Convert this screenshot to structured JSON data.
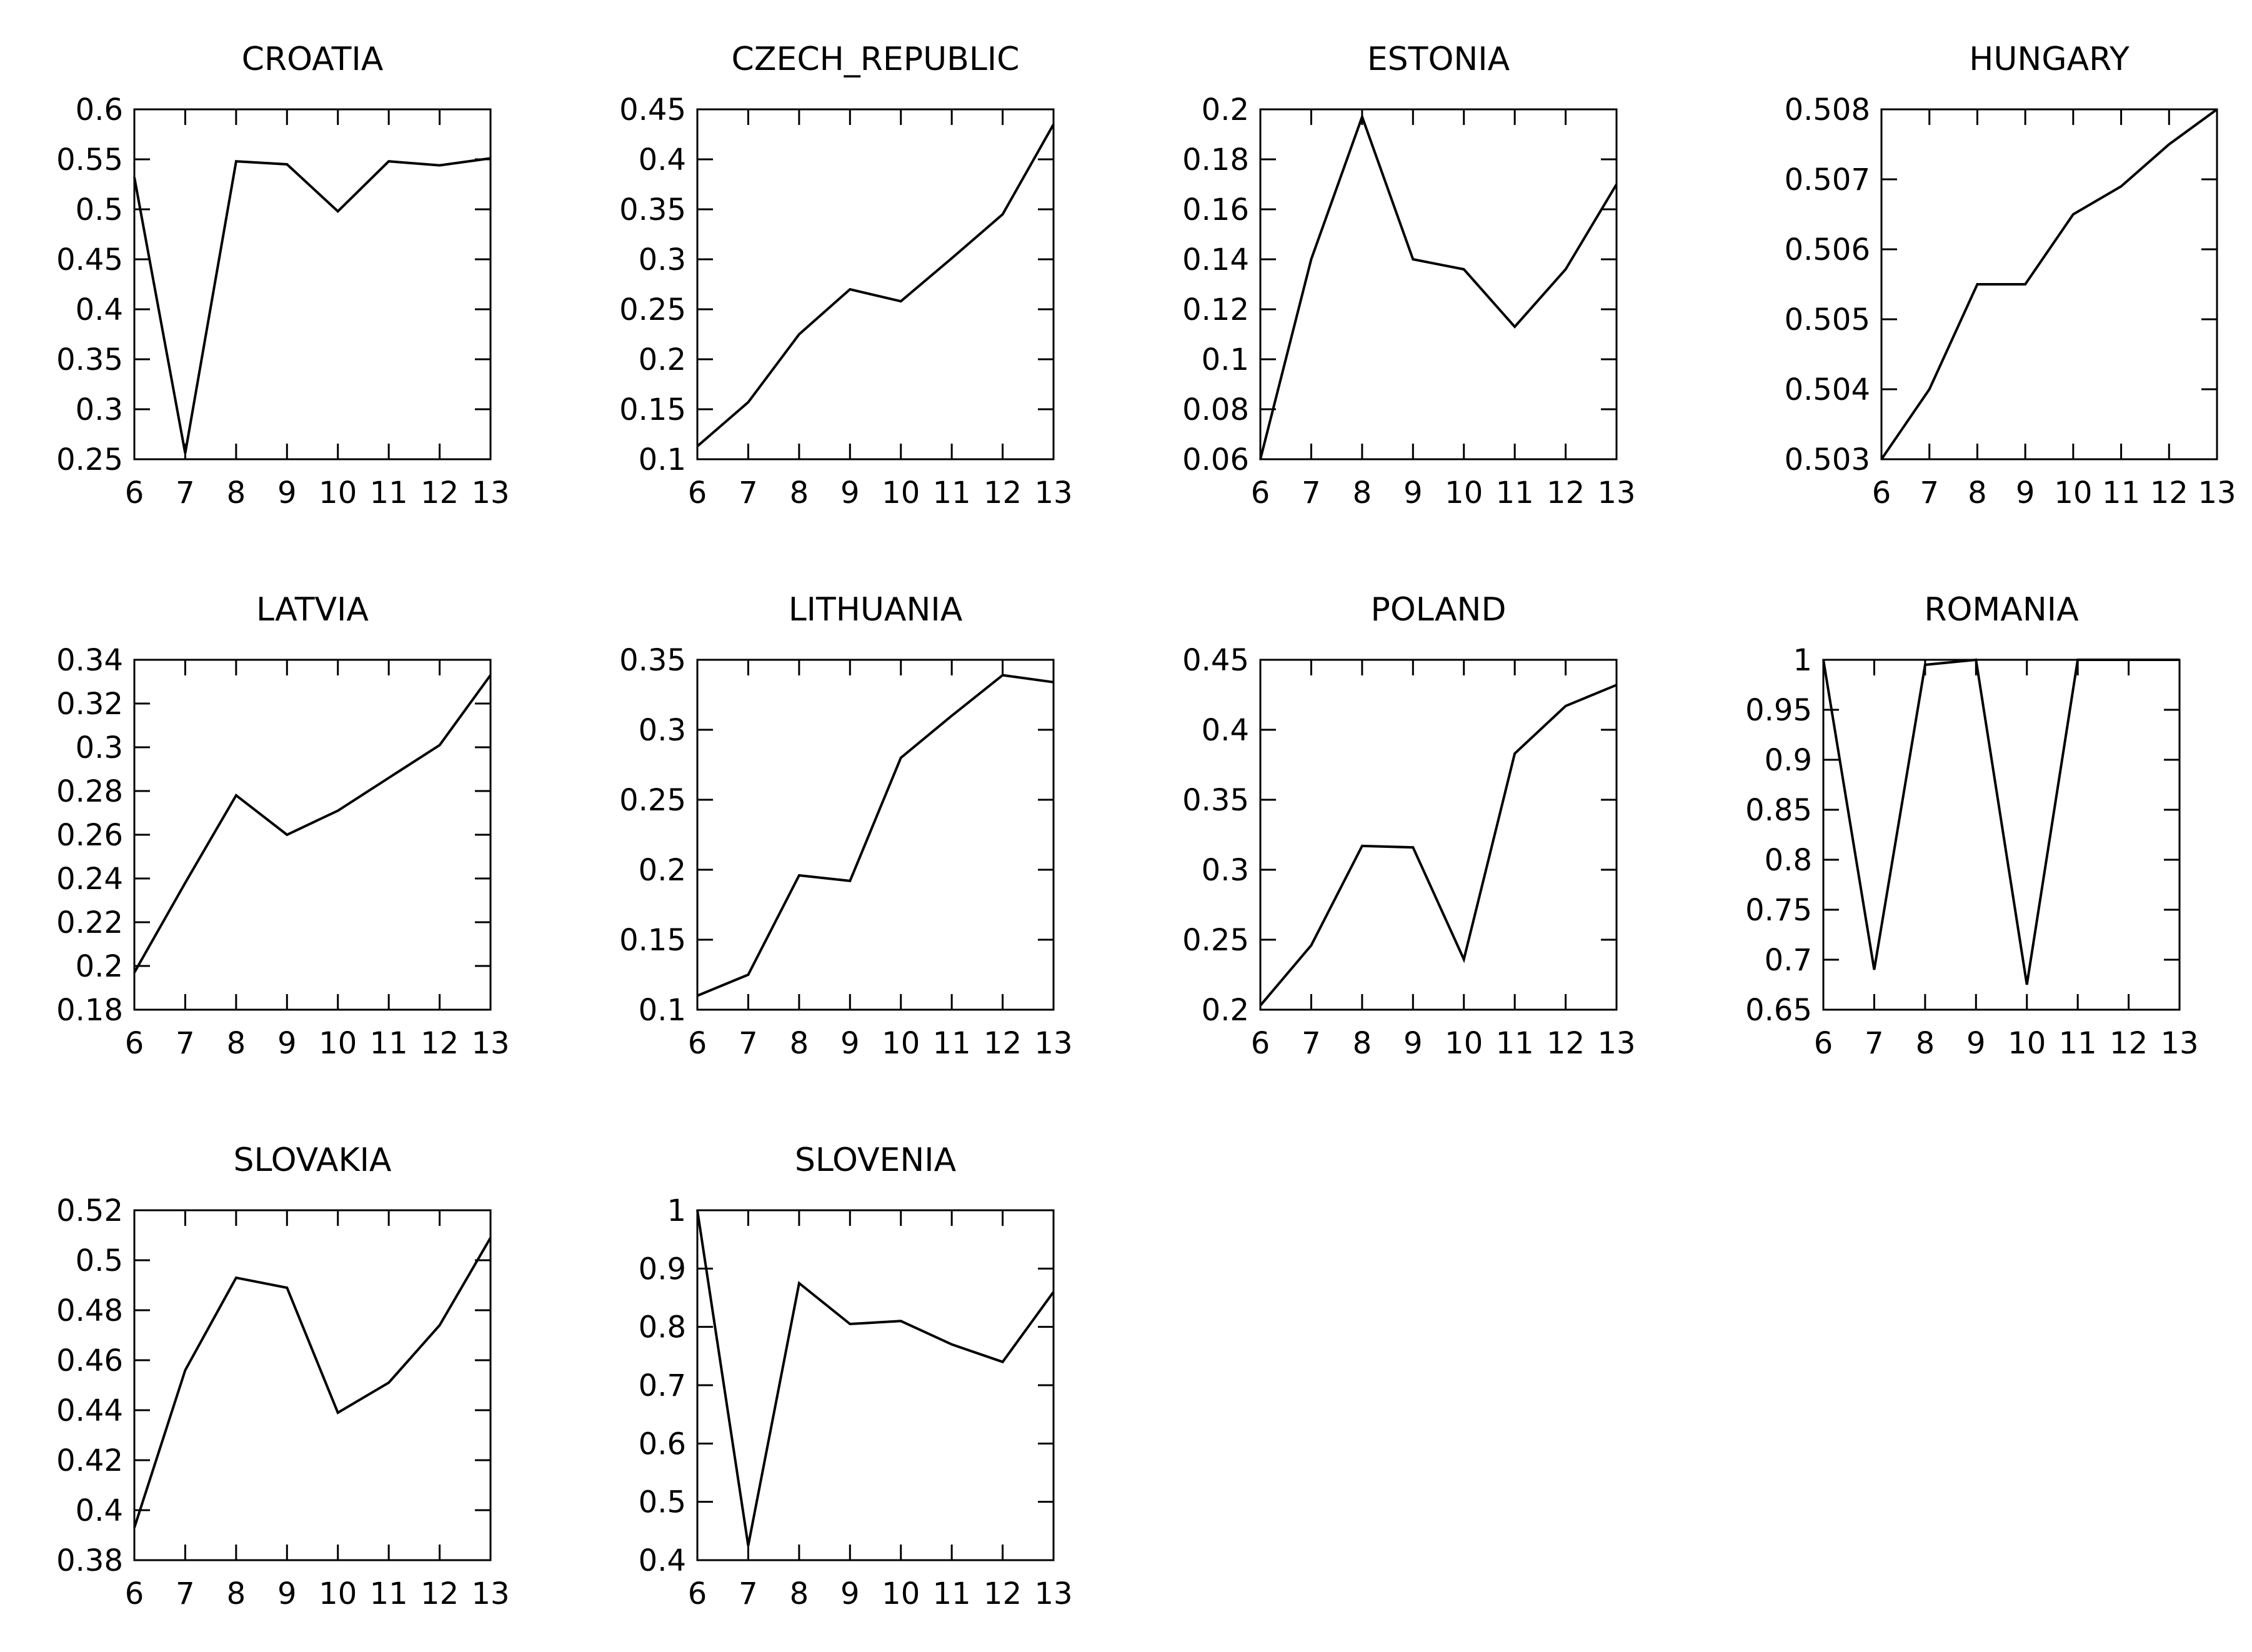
{
  "figure": {
    "background_color": "#ffffff",
    "line_color": "#000000",
    "frame_color": "#000000",
    "grid": false,
    "legend": "none",
    "columns": 4,
    "rows": 3
  },
  "chart_data": [
    {
      "type": "line",
      "title": "CROATIA",
      "x": [
        6,
        7,
        8,
        9,
        10,
        11,
        12,
        13
      ],
      "values": [
        0.532,
        0.256,
        0.548,
        0.545,
        0.498,
        0.548,
        0.544,
        0.551
      ],
      "xlabel": "",
      "ylabel": "",
      "xlim": [
        6,
        13
      ],
      "ylim": [
        0.25,
        0.6
      ],
      "xticks": [
        6,
        7,
        8,
        9,
        10,
        11,
        12,
        13
      ],
      "yticks": [
        0.25,
        0.3,
        0.35,
        0.4,
        0.45,
        0.5,
        0.55,
        0.6
      ]
    },
    {
      "type": "line",
      "title": "CZECH_REPUBLIC",
      "x": [
        6,
        7,
        8,
        9,
        10,
        11,
        12,
        13
      ],
      "values": [
        0.113,
        0.157,
        0.225,
        0.27,
        0.258,
        0.301,
        0.345,
        0.435
      ],
      "xlabel": "",
      "ylabel": "",
      "xlim": [
        6,
        13
      ],
      "ylim": [
        0.1,
        0.45
      ],
      "xticks": [
        6,
        7,
        8,
        9,
        10,
        11,
        12,
        13
      ],
      "yticks": [
        0.1,
        0.15,
        0.2,
        0.25,
        0.3,
        0.35,
        0.4,
        0.45
      ]
    },
    {
      "type": "line",
      "title": "ESTONIA",
      "x": [
        6,
        7,
        8,
        9,
        10,
        11,
        12,
        13
      ],
      "values": [
        0.06,
        0.14,
        0.197,
        0.14,
        0.136,
        0.113,
        0.136,
        0.17
      ],
      "xlabel": "",
      "ylabel": "",
      "xlim": [
        6,
        13
      ],
      "ylim": [
        0.06,
        0.2
      ],
      "xticks": [
        6,
        7,
        8,
        9,
        10,
        11,
        12,
        13
      ],
      "yticks": [
        0.06,
        0.08,
        0.1,
        0.12,
        0.14,
        0.16,
        0.18,
        0.2
      ]
    },
    {
      "type": "line",
      "title": "HUNGARY",
      "x": [
        6,
        7,
        8,
        9,
        10,
        11,
        12,
        13
      ],
      "values": [
        0.503,
        0.504,
        0.5055,
        0.5055,
        0.5065,
        0.5069,
        0.5075,
        0.508
      ],
      "xlabel": "",
      "ylabel": "",
      "xlim": [
        6,
        13
      ],
      "ylim": [
        0.503,
        0.508
      ],
      "xticks": [
        6,
        7,
        8,
        9,
        10,
        11,
        12,
        13
      ],
      "yticks": [
        0.503,
        0.504,
        0.505,
        0.506,
        0.507,
        0.508
      ]
    },
    {
      "type": "line",
      "title": "LATVIA",
      "x": [
        6,
        7,
        8,
        9,
        10,
        11,
        12,
        13
      ],
      "values": [
        0.197,
        0.238,
        0.278,
        0.26,
        0.271,
        0.286,
        0.301,
        0.333
      ],
      "xlabel": "",
      "ylabel": "",
      "xlim": [
        6,
        13
      ],
      "ylim": [
        0.18,
        0.34
      ],
      "xticks": [
        6,
        7,
        8,
        9,
        10,
        11,
        12,
        13
      ],
      "yticks": [
        0.18,
        0.2,
        0.22,
        0.24,
        0.26,
        0.28,
        0.3,
        0.32,
        0.34
      ]
    },
    {
      "type": "line",
      "title": "LITHUANIA",
      "x": [
        6,
        7,
        8,
        9,
        10,
        11,
        12,
        13
      ],
      "values": [
        0.11,
        0.125,
        0.196,
        0.192,
        0.28,
        0.31,
        0.339,
        0.334
      ],
      "xlabel": "",
      "ylabel": "",
      "xlim": [
        6,
        13
      ],
      "ylim": [
        0.1,
        0.35
      ],
      "xticks": [
        6,
        7,
        8,
        9,
        10,
        11,
        12,
        13
      ],
      "yticks": [
        0.1,
        0.15,
        0.2,
        0.25,
        0.3,
        0.35
      ]
    },
    {
      "type": "line",
      "title": "POLAND",
      "x": [
        6,
        7,
        8,
        9,
        10,
        11,
        12,
        13
      ],
      "values": [
        0.203,
        0.246,
        0.317,
        0.316,
        0.236,
        0.383,
        0.417,
        0.432
      ],
      "xlabel": "",
      "ylabel": "",
      "xlim": [
        6,
        13
      ],
      "ylim": [
        0.2,
        0.45
      ],
      "xticks": [
        6,
        7,
        8,
        9,
        10,
        11,
        12,
        13
      ],
      "yticks": [
        0.2,
        0.25,
        0.3,
        0.35,
        0.4,
        0.45
      ]
    },
    {
      "type": "line",
      "title": "ROMANIA",
      "x": [
        6,
        7,
        8,
        9,
        10,
        11,
        12,
        13
      ],
      "values": [
        1.0,
        0.69,
        0.995,
        1.0,
        0.675,
        1.0,
        1.0,
        1.0
      ],
      "xlabel": "",
      "ylabel": "",
      "xlim": [
        6,
        13
      ],
      "ylim": [
        0.65,
        1.0
      ],
      "xticks": [
        6,
        7,
        8,
        9,
        10,
        11,
        12,
        13
      ],
      "yticks": [
        0.65,
        0.7,
        0.75,
        0.8,
        0.85,
        0.9,
        0.95,
        1
      ]
    },
    {
      "type": "line",
      "title": "SLOVAKIA",
      "x": [
        6,
        7,
        8,
        9,
        10,
        11,
        12,
        13
      ],
      "values": [
        0.393,
        0.456,
        0.493,
        0.489,
        0.439,
        0.451,
        0.474,
        0.509
      ],
      "xlabel": "",
      "ylabel": "",
      "xlim": [
        6,
        13
      ],
      "ylim": [
        0.38,
        0.52
      ],
      "xticks": [
        6,
        7,
        8,
        9,
        10,
        11,
        12,
        13
      ],
      "yticks": [
        0.38,
        0.4,
        0.42,
        0.44,
        0.46,
        0.48,
        0.5,
        0.52
      ]
    },
    {
      "type": "line",
      "title": "SLOVENIA",
      "x": [
        6,
        7,
        8,
        9,
        10,
        11,
        12,
        13
      ],
      "values": [
        1.0,
        0.425,
        0.875,
        0.805,
        0.81,
        0.77,
        0.74,
        0.86
      ],
      "xlabel": "",
      "ylabel": "",
      "xlim": [
        6,
        13
      ],
      "ylim": [
        0.4,
        1.0
      ],
      "xticks": [
        6,
        7,
        8,
        9,
        10,
        11,
        12,
        13
      ],
      "yticks": [
        0.4,
        0.5,
        0.6,
        0.7,
        0.8,
        0.9,
        1
      ]
    }
  ]
}
